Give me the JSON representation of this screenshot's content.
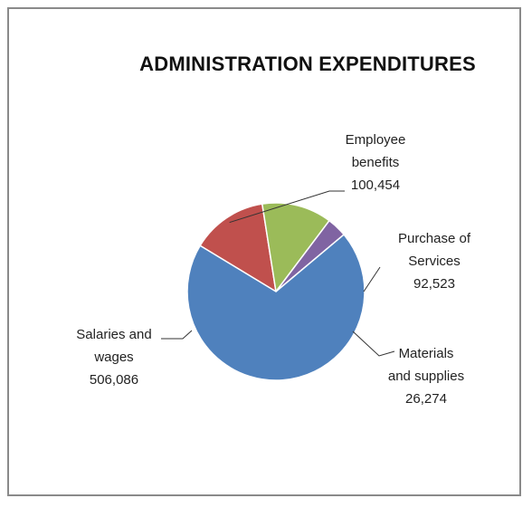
{
  "chart_data": {
    "type": "pie",
    "title": "ADMINISTRATION EXPENDITURES",
    "categories": [
      "Employee benefits",
      "Purchase of Services",
      "Materials and supplies",
      "Salaries and wages"
    ],
    "values": [
      100454,
      92523,
      26274,
      506086
    ],
    "colors": [
      "#C0504D",
      "#9BBB59",
      "#8064A2",
      "#4F81BD"
    ],
    "labels": [
      {
        "line1": "Employee",
        "line2": "benefits",
        "value": "100,454"
      },
      {
        "line1": "Purchase of",
        "line2": "Services",
        "value": "92,523"
      },
      {
        "line1": "Materials",
        "line2": "and supplies",
        "value": "26,274"
      },
      {
        "line1": "Salaries and",
        "line2": "wages",
        "value": "506,086"
      }
    ]
  }
}
